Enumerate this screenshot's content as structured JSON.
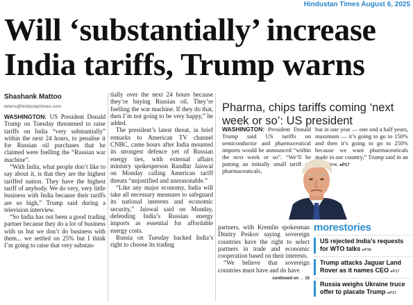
{
  "masthead": "Hindustan Times August 6, 2025",
  "headline": {
    "line1": "Will ‘substantially’ increase",
    "line2": "India tariffs, Trump warns"
  },
  "byline": {
    "name": "Shashank Mattoo",
    "email": "letters@hindustantimes.com"
  },
  "main_story": {
    "col1": [
      {
        "dateline": "WASHINGTON:",
        "text": " US President Donald Trump on Tuesday threatened to raise tariffs on India “very substantially” within the next 24 hours, to penalise it for Russian oil purchases that he claimed were fuelling the “Russian war machine”."
      },
      {
        "text": "“With India, what people don’t like to say about it, is that they are the highest tariffed nation. They have the highest tariff of anybody. We do very, very little business with India because their tariffs are so high,” Trump said during a television interview."
      },
      {
        "text": "“So India has not been a good trading partner because they do a lot of business with us but we don’t do business with them... we settled on 25% but I think I’m going to raise that very substan-"
      }
    ],
    "col2": [
      {
        "text": "tially over the next 24 hours because they’re buying Russian oil. They’re fuelling the war machine. If they do that, then I’m not going to be very happy,” he added.",
        "first": true
      },
      {
        "text": "The president’s latest threat, in brief remarks to American TV channel CNBC, came hours after India mounted its strongest defence yet of Russian energy ties, with external affairs ministry spokesperson Randhir Jaiswal on Monday calling American tariff threats “unjustified and unreasonable.”"
      },
      {
        "text": "“Like any major economy, India will take all necessary measures to safeguard its national interests and economic security,” Jaiswal said on Monday, defending India’s Russian energy imports as essential for affordable energy costs."
      },
      {
        "text": "Russia on Tuesday backed India’s right to choose its trading"
      }
    ],
    "col3": [
      {
        "text": "partners, with Kremlin spokesman Dmitry Peskov saying sovereign countries have the right to select partners in trade and economic cooperation based on their interests.",
        "first": true
      },
      {
        "text": "“We believe that sovereign countries must have and do have"
      }
    ],
    "continued": "continued on → 15"
  },
  "side_story": {
    "title": "Pharma, chips tariffs coming ‘next week or so’: US president",
    "col1": {
      "dateline": "WASHINGTON:",
      "text": " President Donald Trump said US tariffs on semiconductor and pharmaceutical imports would be announced “within the next week or so”. “We’ll be putting an initially small tariff on pharmaceuticals,"
    },
    "col2": {
      "text": "but in one year — one and a half years, maximum — it’s going to go to 150% and then it’s going to go to 250% because we want pharmaceuticals made in our country,” Trump said in an interview.",
      "ref": "▸P17"
    }
  },
  "more_stories": {
    "head_more": "more",
    "head_stories": "stories",
    "items": [
      {
        "text": "US rejected India’s requests for WTO talks",
        "page": "▸P16"
      },
      {
        "text": "Trump attacks Jaguar Land Rover as it names CEO",
        "page": "▸P17"
      },
      {
        "text": "Russia weighs Ukraine truce offer to placate Trump",
        "page": "▸P17"
      }
    ]
  }
}
